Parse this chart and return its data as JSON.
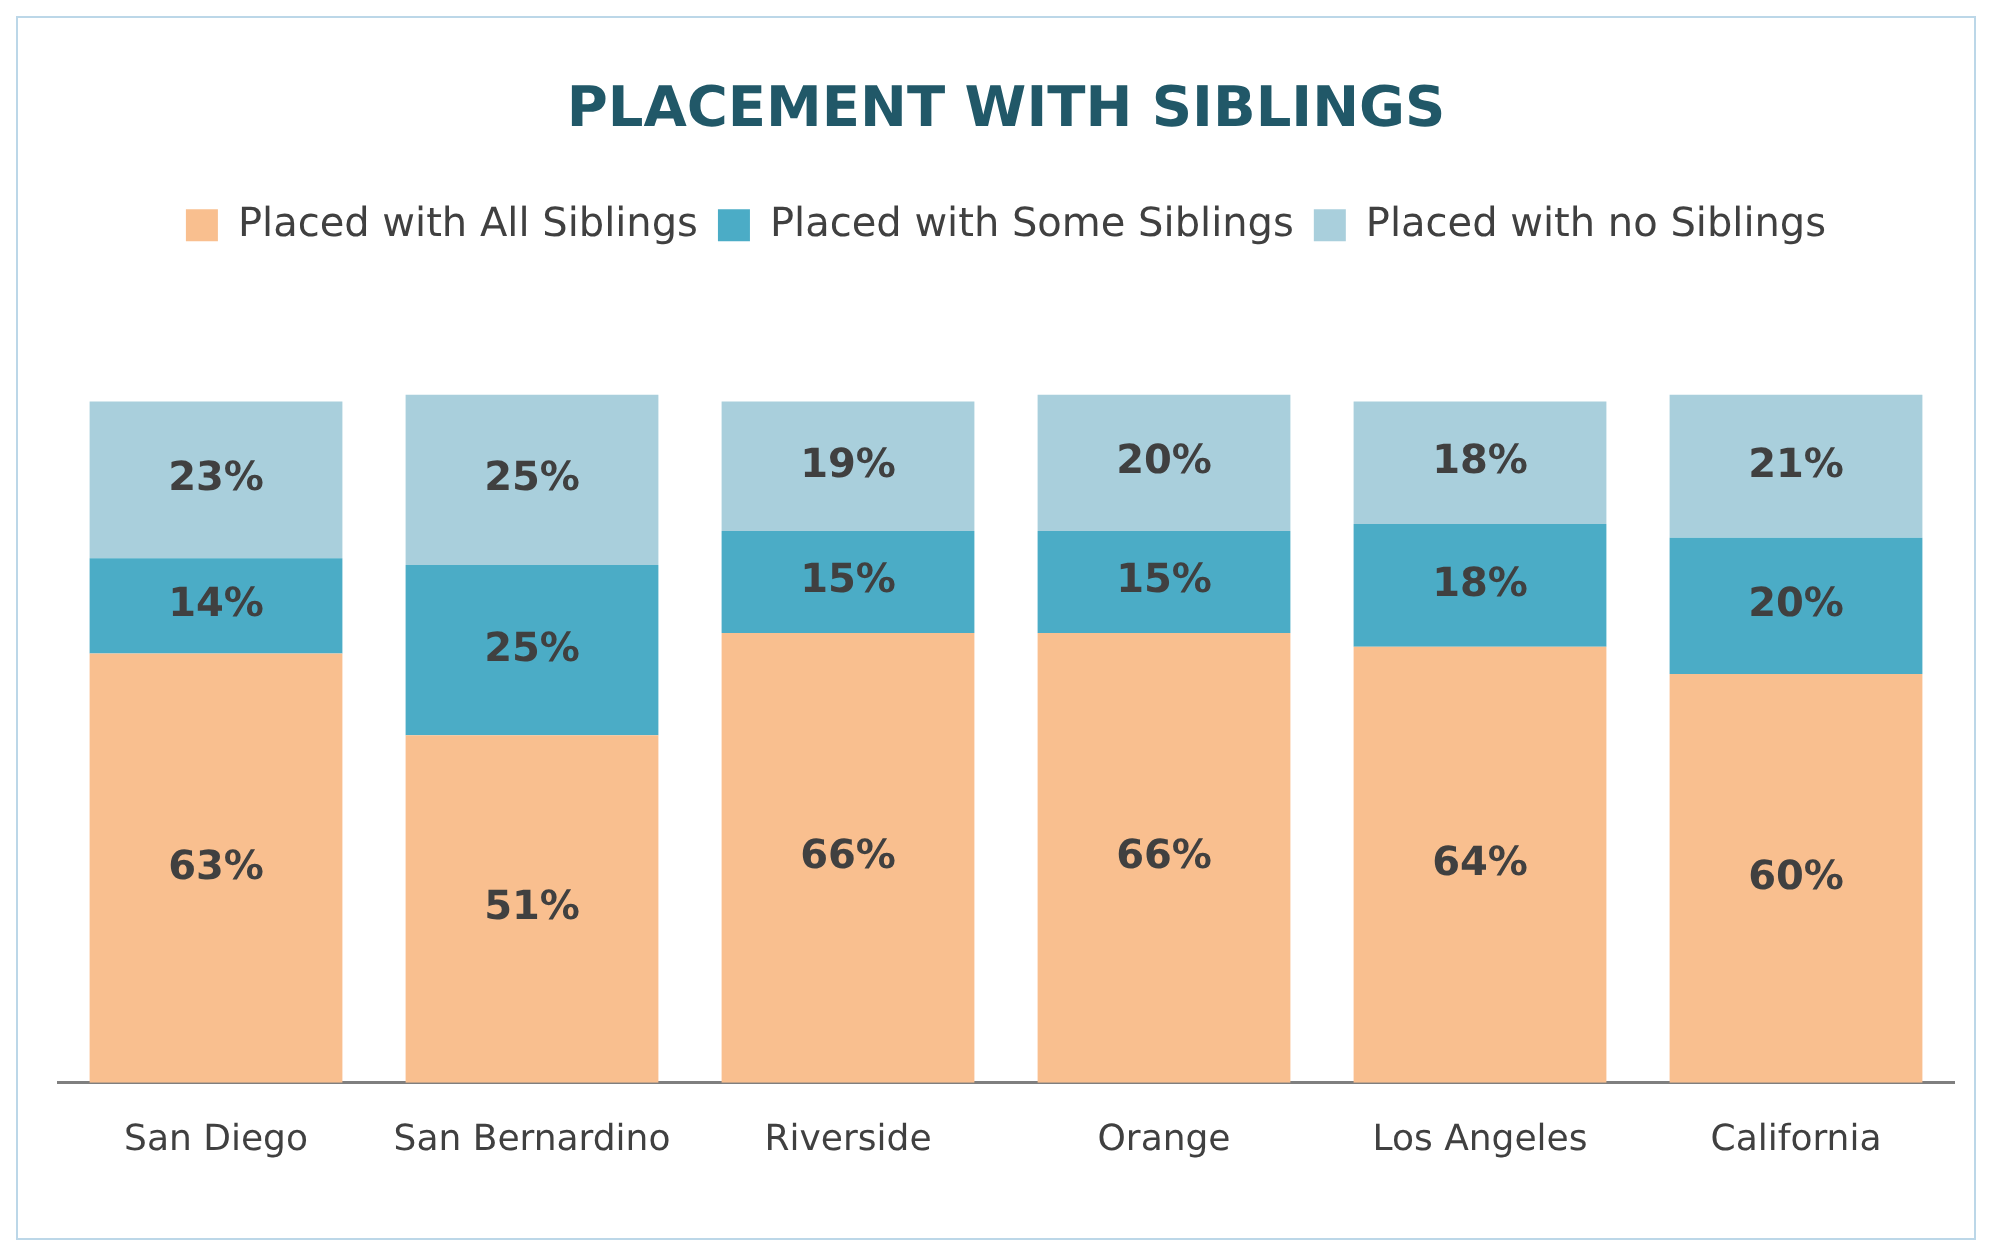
{
  "chart_data": {
    "type": "bar",
    "title": "PLACEMENT WITH SIBLINGS",
    "categories": [
      "San Diego",
      "San Bernardino",
      "Riverside",
      "Orange",
      "Los Angeles",
      "California"
    ],
    "series": [
      {
        "name": "Placed with All Siblings",
        "color": "#f9bf8f",
        "values": [
          63,
          51,
          66,
          66,
          64,
          60
        ],
        "value_labels": [
          "63%",
          "51%",
          "66%",
          "66%",
          "64%",
          "60%"
        ]
      },
      {
        "name": "Placed with Some Siblings",
        "color": "#4bacc6",
        "values": [
          14,
          25,
          15,
          15,
          18,
          20
        ],
        "value_labels": [
          "14%",
          "25%",
          "15%",
          "15%",
          "18%",
          "20%"
        ]
      },
      {
        "name": "Placed with no Siblings",
        "color": "#a9cfdc",
        "values": [
          23,
          25,
          19,
          20,
          18,
          21
        ],
        "value_labels": [
          "23%",
          "25%",
          "19%",
          "20%",
          "18%",
          "21%"
        ]
      }
    ],
    "stacked": true,
    "legend": "top",
    "tick_labels": "x"
  }
}
